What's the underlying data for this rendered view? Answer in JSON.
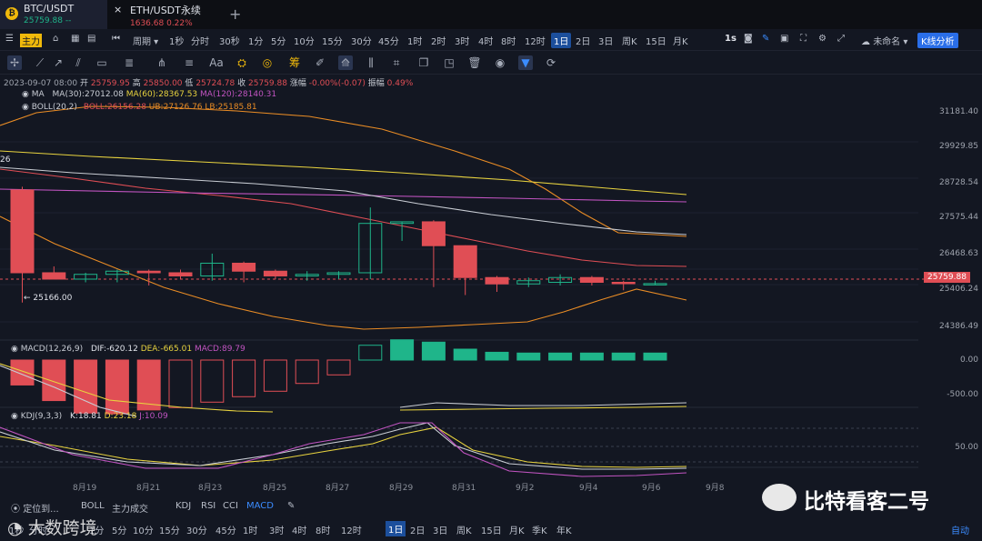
{
  "tabs": [
    {
      "symbol": "BTC/USDT",
      "price": "25759.88",
      "change": "--",
      "active": true
    },
    {
      "symbol": "ETH/USDT永续",
      "price": "1636.68",
      "change": "0.22%",
      "active": false
    }
  ],
  "tab_add_label": "+",
  "tab_close_label": "×",
  "toolbar": {
    "main_badge": "主力",
    "period_label": "周期",
    "intervals": [
      "1秒",
      "分时",
      "30秒",
      "1分",
      "5分",
      "10分",
      "15分",
      "30分",
      "45分",
      "1时",
      "2时",
      "3时",
      "4时",
      "8时",
      "12时",
      "1日",
      "2日",
      "3日",
      "周K",
      "15日",
      "月K"
    ],
    "selected_interval": "1日",
    "speed": "1s",
    "unnamed_label": "未命名",
    "kline_analysis_label": "K线分析"
  },
  "ohlc_line": {
    "date": "2023-09-07 08:00",
    "open_label": "开",
    "open": "25759.95",
    "high_label": "高",
    "high": "25850.00",
    "low_label": "低",
    "low": "25724.78",
    "close_label": "收",
    "close": "25759.88",
    "change_label": "涨幅",
    "change": "-0.00%(-0.07)",
    "amp_label": "振幅",
    "amp": "0.49%"
  },
  "ma_line": {
    "name": "MA",
    "ma30": "MA(30):27012.08",
    "ma60": "MA(60):28367.53",
    "ma120": "MA(120):28140.31"
  },
  "boll_line": {
    "name": "BOLL(20,2)",
    "boll": "BOLL:26156.28",
    "ub": "UB:27126.76",
    "lb": "LB:25185.81"
  },
  "macd_line": {
    "name": "MACD(12,26,9)",
    "dif": "DIF:-620.12",
    "dea": "DEA:-665.01",
    "macd": "MACD:89.79"
  },
  "kdj_line": {
    "name": "KDJ(9,3,3)",
    "k": "K:18.81",
    "d": "D:23.18",
    "j": "J:10.09"
  },
  "left_edge_label": "26",
  "low_marker": "← 25166.00",
  "current_price_tag": "25759.88",
  "colors": {
    "up": "#1fb58a",
    "down": "#e04e55",
    "ma30": "#c9cdd4",
    "ma60": "#e8d33f",
    "ma120": "#c154c1",
    "boll_mid": "#e04e55",
    "boll_band": "#e98c25",
    "accent": "#2a6ee8"
  },
  "chart_data": [
    {
      "type": "candlestick",
      "x": [
        "8月18",
        "8月19",
        "8月20",
        "8月21",
        "8月22",
        "8月23",
        "8月24",
        "8月25",
        "8月26",
        "8月27",
        "8月28",
        "8月29",
        "8月30",
        "8月31",
        "9月1",
        "9月2",
        "9月3",
        "9月4",
        "9月5",
        "9月6",
        "9月7"
      ],
      "open": [
        28700,
        26100,
        25900,
        26050,
        26150,
        26100,
        26000,
        26400,
        26150,
        26000,
        26050,
        26100,
        27650,
        27700,
        26950,
        25950,
        25750,
        25800,
        25950,
        25800,
        25760
      ],
      "high": [
        28800,
        26300,
        26100,
        26200,
        26200,
        26200,
        26700,
        26450,
        26200,
        26150,
        26150,
        28150,
        27700,
        27750,
        26960,
        26000,
        25950,
        26050,
        26000,
        25850,
        25850
      ],
      "low": [
        25166,
        25900,
        25800,
        25800,
        25700,
        25900,
        25850,
        25800,
        25900,
        25850,
        25900,
        25900,
        27100,
        25650,
        25400,
        25500,
        25650,
        25700,
        25700,
        25550,
        25724
      ],
      "close": [
        26100,
        25900,
        26050,
        26150,
        26100,
        26000,
        26400,
        26150,
        26000,
        26050,
        26100,
        27650,
        27700,
        26950,
        25950,
        25750,
        25850,
        25950,
        25800,
        25780,
        25760
      ],
      "yaxis_ticks": [
        "31181.40",
        "29929.85",
        "28728.54",
        "27575.44",
        "26468.63",
        "25406.24",
        "24386.49"
      ],
      "ylim": [
        24386.49,
        31181.4
      ]
    },
    {
      "type": "bar",
      "name": "MACD",
      "values": [
        -320,
        -520,
        -680,
        -690,
        -640,
        -610,
        -540,
        -470,
        -400,
        -300,
        -190,
        190,
        260,
        230,
        140,
        100,
        90,
        90,
        90,
        90,
        90
      ],
      "yaxis_ticks": [
        "0.00",
        "-500.00"
      ]
    },
    {
      "type": "line",
      "name": "KDJ",
      "yaxis_ticks": [
        "50.00"
      ]
    }
  ],
  "x_ticks": [
    "8月19",
    "8月21",
    "8月23",
    "8月25",
    "8月27",
    "8月29",
    "8月31",
    "9月2",
    "9月4",
    "9月6",
    "9月8"
  ],
  "indicator_tabs": {
    "locate": "定位到...",
    "main": [
      "BOLL",
      "主力成交"
    ],
    "sub": [
      "KDJ",
      "RSI",
      "CCI",
      "MACD"
    ],
    "selected": "MACD"
  },
  "period_tabs": [
    "1秒",
    "分时",
    "1分",
    "5分",
    "10分",
    "15分",
    "30分",
    "45分",
    "1时",
    "3时",
    "4时",
    "8时",
    "12时",
    "1日",
    "2日",
    "3日",
    "周K",
    "15日",
    "月K",
    "季K",
    "年K"
  ],
  "period_selected": "1日",
  "auto_label": "自动",
  "watermark": "比特看客二号",
  "logo_text": "大数跨境"
}
